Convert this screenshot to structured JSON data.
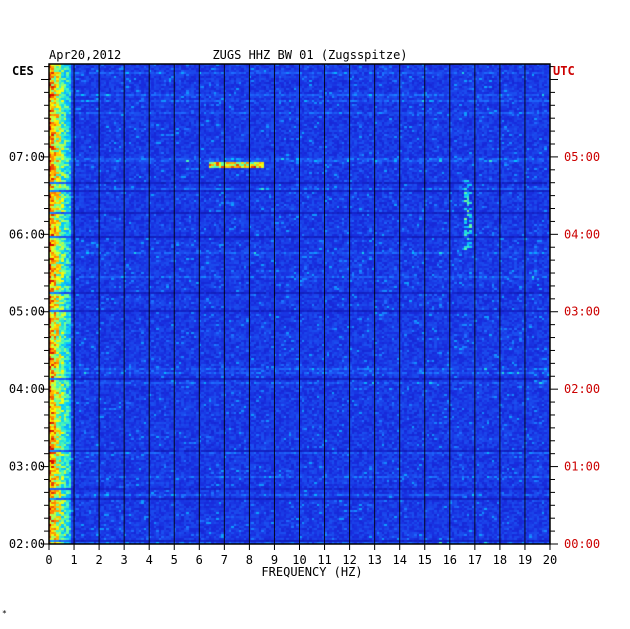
{
  "chart_data": {
    "type": "heatmap",
    "date": "Apr20,2012",
    "title": "ZUGS HHZ BW 01 (Zugsspitze)",
    "left_axis_label": "CES",
    "right_axis_label": "UTC",
    "xlabel": "FREQUENCY (HZ)",
    "xlim": [
      0,
      20
    ],
    "x_ticks": [
      0,
      1,
      2,
      3,
      4,
      5,
      6,
      7,
      8,
      9,
      10,
      11,
      12,
      13,
      14,
      15,
      16,
      17,
      18,
      19,
      20
    ],
    "x_tick_labels": [
      "0",
      "1",
      "2",
      "3",
      "4",
      "5",
      "6",
      "7",
      "8",
      "9",
      "10",
      "11",
      "12",
      "13",
      "14",
      "15",
      "16",
      "17",
      "18",
      "19",
      "20"
    ],
    "left_time_labels": [
      "07:00",
      "06:00",
      "05:00",
      "04:00",
      "03:00",
      "02:00"
    ],
    "right_time_labels": [
      "05:00",
      "04:00",
      "03:00",
      "02:00",
      "01:00",
      "00:00"
    ],
    "time_range_utc_hours": [
      0.0,
      6.0
    ],
    "grid": true,
    "colors": {
      "background": "#1a2ad8",
      "grid": "#000000",
      "axis": "#000000",
      "utc_label": "#cc0000"
    },
    "features": [
      {
        "kind": "low_frequency_band",
        "x_range": [
          0.0,
          0.9
        ]
      },
      {
        "kind": "narrowband_burst",
        "utc_hour": 4.9,
        "x_range": [
          6.4,
          8.6
        ]
      },
      {
        "kind": "spectral_trace",
        "x_range": [
          16.6,
          16.9
        ],
        "utc_hour_range": [
          3.8,
          4.7
        ]
      }
    ]
  },
  "footer_mark": "*"
}
